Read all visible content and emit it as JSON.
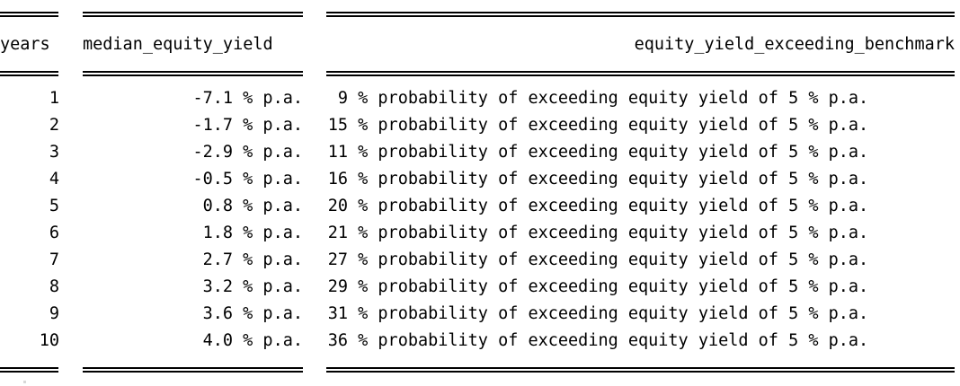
{
  "columns": [
    {
      "key": "years",
      "label": "years"
    },
    {
      "key": "median_equity_yield",
      "label": "median_equity_yield"
    },
    {
      "key": "equity_yield_exceeding_benchmark",
      "label": "equity_yield_exceeding_benchmark"
    }
  ],
  "rows": [
    {
      "years": "1",
      "median": "-7.1 % p.a.",
      "prob": "9",
      "prob_text": "% probability of exceeding equity yield of 5 % p.a."
    },
    {
      "years": "2",
      "median": "-1.7 % p.a.",
      "prob": "15",
      "prob_text": "% probability of exceeding equity yield of 5 % p.a."
    },
    {
      "years": "3",
      "median": "-2.9 % p.a.",
      "prob": "11",
      "prob_text": "% probability of exceeding equity yield of 5 % p.a."
    },
    {
      "years": "4",
      "median": "-0.5 % p.a.",
      "prob": "16",
      "prob_text": "% probability of exceeding equity yield of 5 % p.a."
    },
    {
      "years": "5",
      "median": "0.8 % p.a.",
      "prob": "20",
      "prob_text": "% probability of exceeding equity yield of 5 % p.a."
    },
    {
      "years": "6",
      "median": "1.8 % p.a.",
      "prob": "21",
      "prob_text": "% probability of exceeding equity yield of 5 % p.a."
    },
    {
      "years": "7",
      "median": "2.7 % p.a.",
      "prob": "27",
      "prob_text": "% probability of exceeding equity yield of 5 % p.a."
    },
    {
      "years": "8",
      "median": "3.2 % p.a.",
      "prob": "29",
      "prob_text": "% probability of exceeding equity yield of 5 % p.a."
    },
    {
      "years": "9",
      "median": "3.6 % p.a.",
      "prob": "31",
      "prob_text": "% probability of exceeding equity yield of 5 % p.a."
    },
    {
      "years": "10",
      "median": "4.0 % p.a.",
      "prob": "36",
      "prob_text": "% probability of exceeding equity yield of 5 % p.a."
    }
  ]
}
